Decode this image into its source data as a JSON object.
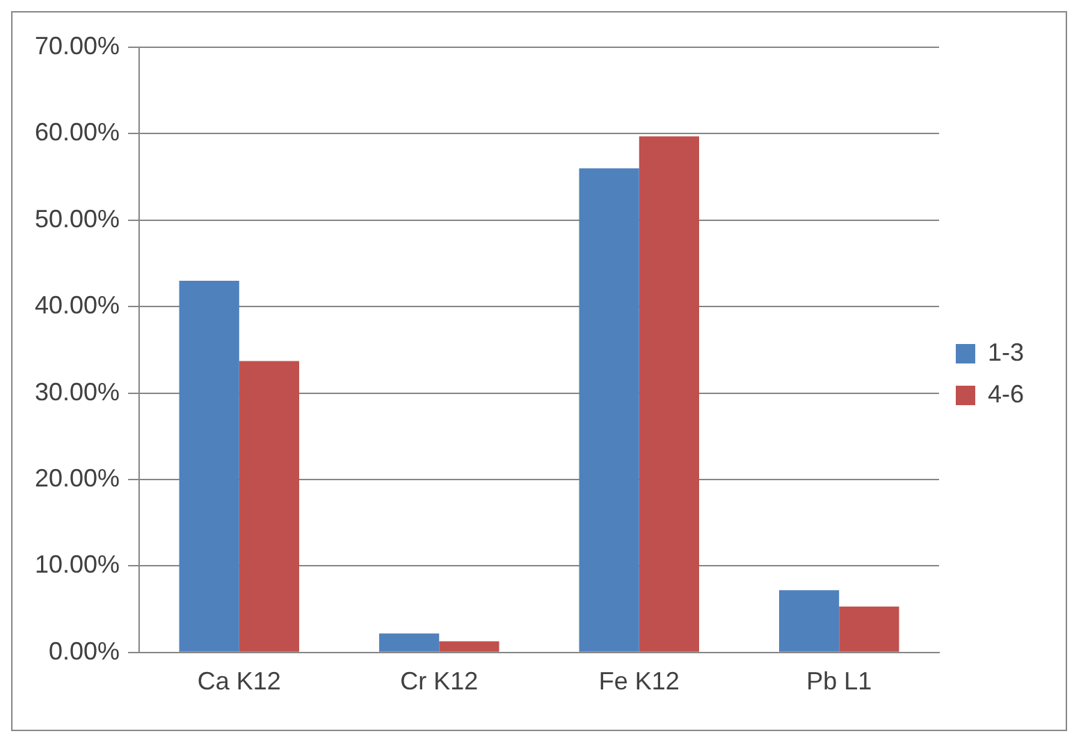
{
  "chart_data": {
    "type": "bar",
    "categories": [
      "Ca K12",
      "Cr K12",
      "Fe K12",
      "Pb L1"
    ],
    "series": [
      {
        "name": "1-3",
        "color": "#4f81bd",
        "values": [
          43,
          2.2,
          56,
          7.2
        ]
      },
      {
        "name": "4-6",
        "color": "#c0504d",
        "values": [
          33.7,
          1.3,
          59.7,
          5.3
        ]
      }
    ],
    "ylim": [
      0,
      70
    ],
    "yticks": [
      {
        "value": 0,
        "label": "0.00%"
      },
      {
        "value": 10,
        "label": "10.00%"
      },
      {
        "value": 20,
        "label": "20.00%"
      },
      {
        "value": 30,
        "label": "30.00%"
      },
      {
        "value": 40,
        "label": "40.00%"
      },
      {
        "value": 50,
        "label": "50.00%"
      },
      {
        "value": 60,
        "label": "60.00%"
      },
      {
        "value": 70,
        "label": "70.00%"
      }
    ],
    "grid": "y",
    "legend": "right"
  }
}
